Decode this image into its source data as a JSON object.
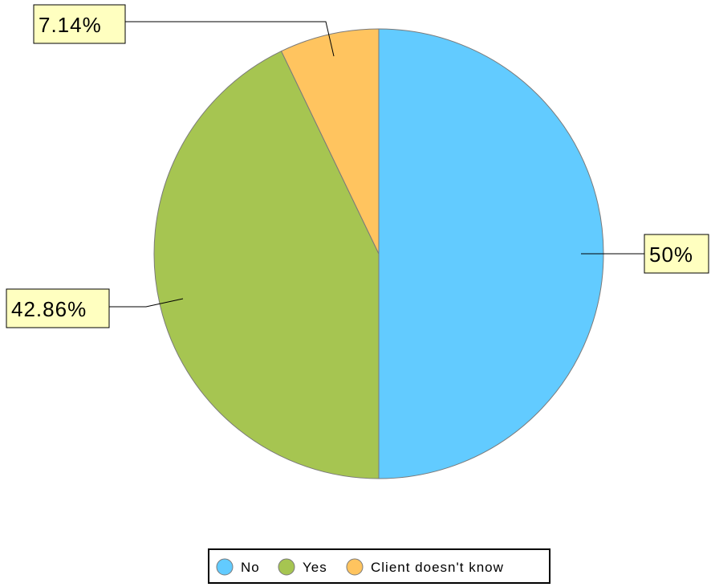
{
  "chart_data": {
    "type": "pie",
    "title": "",
    "categories": [
      "No",
      "Yes",
      "Client doesn't know"
    ],
    "values": [
      50,
      42.86,
      7.14
    ],
    "data_labels": [
      "50%",
      "42.86%",
      "7.14%"
    ],
    "colors": [
      "#62cbff",
      "#a6c551",
      "#ffc45f"
    ],
    "start_angle": "12 o'clock",
    "direction": "clockwise",
    "legend_position": "bottom"
  }
}
